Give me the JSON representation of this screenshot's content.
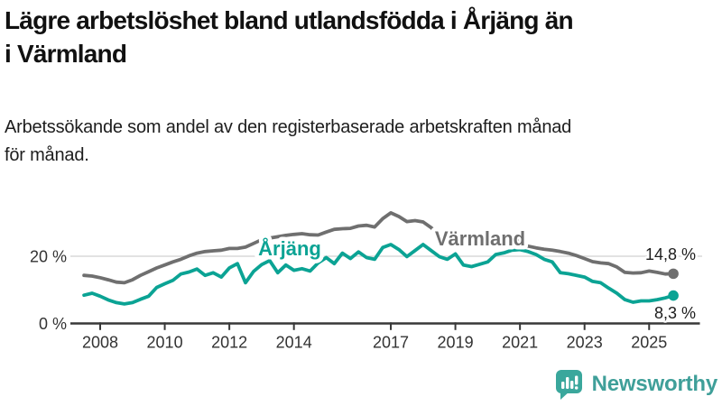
{
  "header": {
    "title_lines": [
      "Lägre arbetslöshet bland utlandsfödda i Årjäng än",
      "i Värmland"
    ],
    "title": "Lägre arbetslöshet bland utlandsfödda i Årjäng än i Värmland",
    "subtitle_lines": [
      "Arbetssökande som andel av den registerbaserade arbetskraften månad",
      "för månad."
    ],
    "subtitle": "Arbetssökande som andel av den registerbaserade arbetskraften månad för månad."
  },
  "footer": {
    "brand": "Newsworthy",
    "brand_color": "#3f9f99",
    "badge_color": "#3aa79c"
  },
  "chart_data": {
    "type": "line",
    "title": "Lägre arbetslöshet bland utlandsfödda i Årjäng än i Värmland",
    "xlabel": "",
    "ylabel": "",
    "x_unit": "year",
    "x_start": 2007.5,
    "x_step": 0.25,
    "x_end": 2025.75,
    "xlim": [
      2007.08,
      2026.6
    ],
    "ylim": [
      0,
      35.8
    ],
    "grid": "y-gridline-at-20-only",
    "legend_position": "inline-labels-on-lines",
    "x_ticks": [
      2008,
      2010,
      2012,
      2014,
      2017,
      2019,
      2021,
      2023,
      2025
    ],
    "y_ticks": [
      {
        "value": 0,
        "label": "0 %"
      },
      {
        "value": 20,
        "label": "20 %"
      }
    ],
    "series": [
      {
        "name": "Värmland",
        "slug": "varmland",
        "color": "#6f6f6f",
        "end_label": "14,8 %",
        "end_value": 14.8,
        "values": [
          14.3,
          14.1,
          13.6,
          13.0,
          12.3,
          12.1,
          13.0,
          14.3,
          15.4,
          16.5,
          17.4,
          18.3,
          19.1,
          20.1,
          20.9,
          21.4,
          21.6,
          21.8,
          22.3,
          22.3,
          22.7,
          23.8,
          24.9,
          25.4,
          25.8,
          26.2,
          26.5,
          26.7,
          26.4,
          26.3,
          27.2,
          28.0,
          28.2,
          28.3,
          29.0,
          29.2,
          28.7,
          31.2,
          32.9,
          31.8,
          30.3,
          30.6,
          30.2,
          28.5,
          26.2,
          25.6,
          25.2,
          24.8,
          24.5,
          24.3,
          24.6,
          26.3,
          26.0,
          25.3,
          24.2,
          23.0,
          22.5,
          22.1,
          21.8,
          21.4,
          20.9,
          20.2,
          19.3,
          18.4,
          18.0,
          17.8,
          16.8,
          15.2,
          15.0,
          15.1,
          15.6,
          15.2,
          14.7,
          14.8
        ]
      },
      {
        "name": "Årjäng",
        "slug": "arjang",
        "color": "#0ba394",
        "end_label": "8,3 %",
        "end_value": 8.3,
        "values": [
          8.4,
          9.0,
          8.1,
          7.0,
          6.2,
          5.8,
          6.2,
          7.2,
          8.1,
          10.7,
          11.8,
          12.8,
          14.7,
          15.3,
          16.2,
          14.3,
          15.1,
          13.8,
          16.5,
          17.8,
          12.1,
          15.5,
          17.5,
          18.7,
          15.1,
          17.4,
          15.8,
          16.3,
          15.6,
          18.0,
          19.6,
          17.8,
          20.9,
          19.3,
          21.3,
          19.6,
          19.1,
          22.6,
          23.5,
          22.0,
          19.9,
          21.7,
          23.5,
          21.7,
          19.9,
          19.1,
          20.7,
          17.4,
          16.9,
          17.6,
          18.3,
          20.5,
          21.0,
          21.8,
          22.0,
          21.4,
          20.5,
          19.1,
          18.3,
          15.1,
          14.8,
          14.3,
          13.8,
          12.5,
          12.1,
          10.5,
          9.0,
          7.1,
          6.3,
          6.7,
          6.7,
          7.1,
          7.6,
          8.3
        ]
      }
    ]
  }
}
